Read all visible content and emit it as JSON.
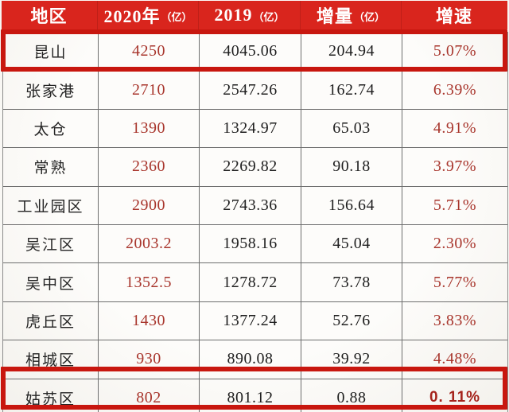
{
  "colors": {
    "header_bg": "#d9251d",
    "highlight_border": "#c8170f",
    "accent_number": "#a8352c",
    "plain_number": "#1f1f1f"
  },
  "table": {
    "headers": [
      {
        "main": "地区",
        "suffix": ""
      },
      {
        "main": "2020年",
        "suffix": "（亿）"
      },
      {
        "main": "2019",
        "suffix": "（亿）"
      },
      {
        "main": "增量",
        "suffix": "（亿）"
      },
      {
        "main": "增速",
        "suffix": ""
      }
    ],
    "rows": [
      {
        "region": "昆山",
        "v2020": "4250",
        "v2019": "4045.06",
        "delta": "204.94",
        "rate": "5.07%"
      },
      {
        "region": "张家港",
        "v2020": "2710",
        "v2019": "2547.26",
        "delta": "162.74",
        "rate": "6.39%"
      },
      {
        "region": "太仓",
        "v2020": "1390",
        "v2019": "1324.97",
        "delta": "65.03",
        "rate": "4.91%"
      },
      {
        "region": "常熟",
        "v2020": "2360",
        "v2019": "2269.82",
        "delta": "90.18",
        "rate": "3.97%"
      },
      {
        "region": "工业园区",
        "v2020": "2900",
        "v2019": "2743.36",
        "delta": "156.64",
        "rate": "5.71%"
      },
      {
        "region": "吴江区",
        "v2020": "2003.2",
        "v2019": "1958.16",
        "delta": "45.04",
        "rate": "2.30%"
      },
      {
        "region": "吴中区",
        "v2020": "1352.5",
        "v2019": "1278.72",
        "delta": "73.78",
        "rate": "5.77%"
      },
      {
        "region": "虎丘区",
        "v2020": "1430",
        "v2019": "1377.24",
        "delta": "52.76",
        "rate": "3.83%"
      },
      {
        "region": "相城区",
        "v2020": "930",
        "v2019": "890.08",
        "delta": "39.92",
        "rate": "4.48%"
      },
      {
        "region": "姑苏区",
        "v2020": "802",
        "v2019": "801.12",
        "delta": "0.88",
        "rate": "0. 11%"
      }
    ],
    "highlighted_regions": [
      "昆山",
      "姑苏区"
    ]
  },
  "chart_data": {
    "type": "table",
    "title": "苏州各区市GDP：2020年 vs 2019年",
    "columns": [
      "地区",
      "2020年（亿）",
      "2019（亿）",
      "增量（亿）",
      "增速"
    ],
    "rows": [
      [
        "昆山",
        4250,
        4045.06,
        204.94,
        "5.07%"
      ],
      [
        "张家港",
        2710,
        2547.26,
        162.74,
        "6.39%"
      ],
      [
        "太仓",
        1390,
        1324.97,
        65.03,
        "4.91%"
      ],
      [
        "常熟",
        2360,
        2269.82,
        90.18,
        "3.97%"
      ],
      [
        "工业园区",
        2900,
        2743.36,
        156.64,
        "5.71%"
      ],
      [
        "吴江区",
        2003.2,
        1958.16,
        45.04,
        "2.30%"
      ],
      [
        "吴中区",
        1352.5,
        1278.72,
        73.78,
        "5.77%"
      ],
      [
        "虎丘区",
        1430,
        1377.24,
        52.76,
        "3.83%"
      ],
      [
        "相城区",
        930,
        890.08,
        39.92,
        "4.48%"
      ],
      [
        "姑苏区",
        802,
        801.12,
        0.88,
        "0.11%"
      ]
    ],
    "highlighted_rows": [
      "昆山",
      "姑苏区"
    ],
    "layout": {
      "header_style": "red-bar-white-text",
      "grid": true
    }
  }
}
